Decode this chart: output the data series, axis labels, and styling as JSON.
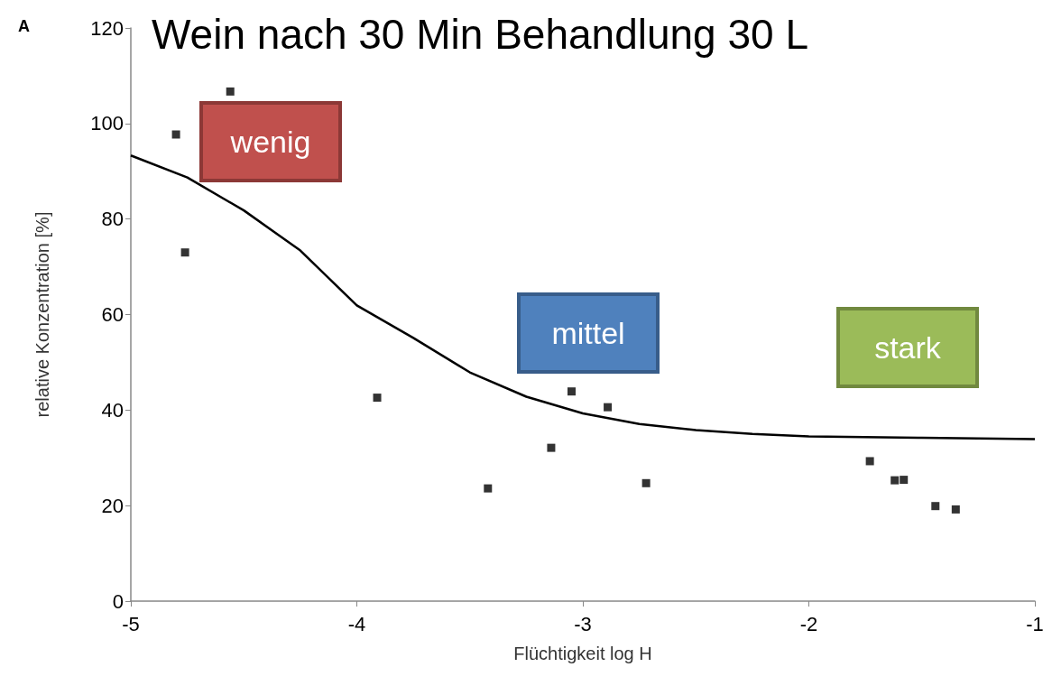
{
  "chart_data": {
    "type": "scatter",
    "title": "Wein nach 30 Min Behandlung 30 L",
    "xlabel": "Flüchtigkeit log H",
    "ylabel": "relative Konzentration [%]",
    "xlim": [
      -5,
      -1
    ],
    "xticks": [
      -5,
      -4,
      -3,
      -2,
      -1
    ],
    "ylim": [
      0,
      120
    ],
    "yticks": [
      0,
      20,
      40,
      60,
      80,
      100,
      120
    ],
    "grid": false,
    "marker": "square",
    "series": [
      {
        "color": "#000000",
        "x": [
          -4.8,
          -4.56,
          -4.76,
          -3.91,
          -3.42,
          -3.14,
          -3.05,
          -2.89,
          -2.72,
          -1.73,
          -1.62,
          -1.58,
          -1.44,
          -1.35
        ],
        "values": [
          97.7,
          106.7,
          73.0,
          42.6,
          23.6,
          32.1,
          43.9,
          40.6,
          24.7,
          29.3,
          25.3,
          25.4,
          19.9,
          19.2
        ]
      },
      {
        "type": "line",
        "color": "#000000",
        "marker": "none",
        "x": [
          -5,
          -4.75,
          -4.5,
          -4.25,
          -4,
          -3.75,
          -3.5,
          -3.25,
          -3,
          -2.75,
          -2.5,
          -2.25,
          -2,
          -1.5,
          -1
        ],
        "values": [
          93.3,
          88.7,
          81.8,
          73.4,
          61.9,
          55.1,
          47.9,
          42.8,
          39.3,
          37.1,
          35.8,
          35.0,
          34.5,
          34.2,
          33.9
        ]
      }
    ],
    "annotations": [
      "A",
      "wenig",
      "mittel",
      "stark"
    ]
  }
}
